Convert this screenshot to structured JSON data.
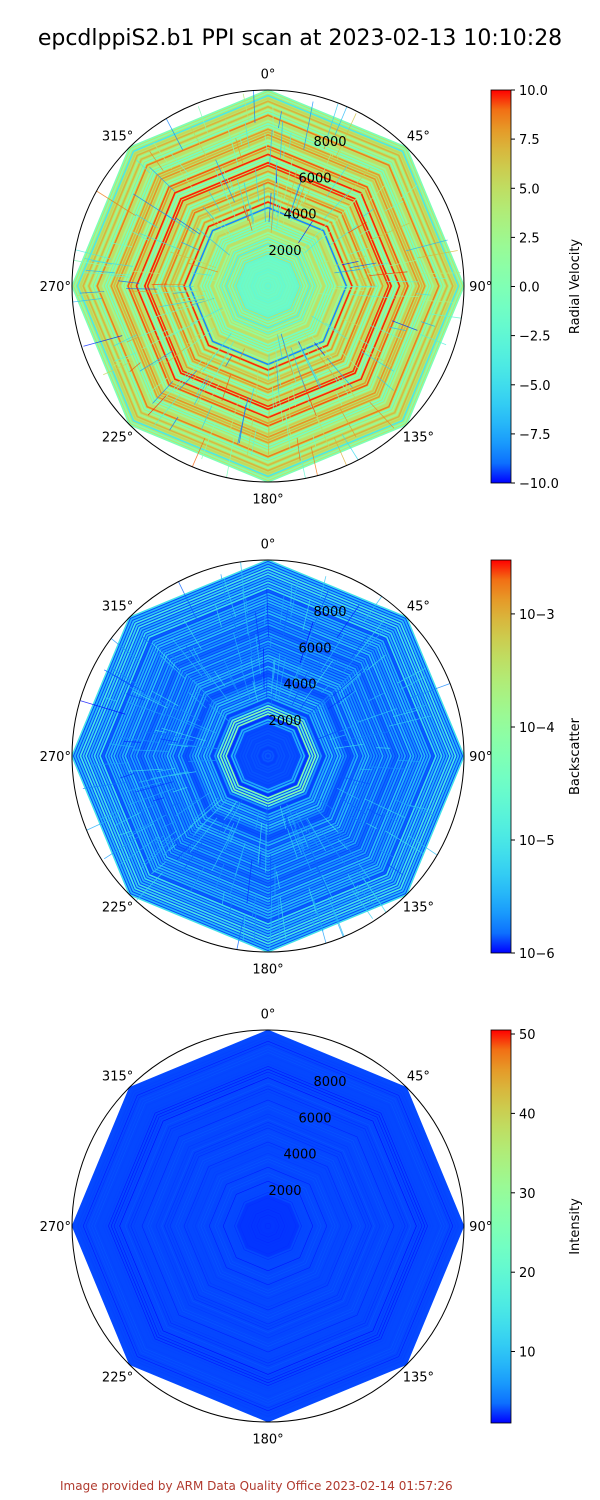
{
  "title": "epcdlppiS2.b1 PPI scan at 2023-02-13 10:10:28",
  "credit": "Image provided by ARM Data Quality Office 2023-02-14 01:57:26",
  "chart_data": [
    {
      "type": "heatmap",
      "projection": "polar",
      "theta_direction": "clockwise",
      "theta_zero": "north",
      "angle_ticks": [
        "0°",
        "45°",
        "90°",
        "135°",
        "180°",
        "225°",
        "270°",
        "315°"
      ],
      "range_ticks": [
        2000,
        4000,
        6000,
        8000
      ],
      "rmax": 10000,
      "scan_azimuths_deg": [
        0,
        45,
        90,
        135,
        180,
        225,
        270,
        315
      ],
      "colorbar": {
        "label": "Radial Velocity",
        "cmap": "rainbow",
        "scale": "linear",
        "range": [
          -10.0,
          10.0
        ],
        "ticks": [
          "10.0",
          "7.5",
          "5.0",
          "2.5",
          "0.0",
          "−2.5",
          "−5.0",
          "−7.5",
          "−10.0"
        ]
      },
      "field": "mixed, -10 to 10 (mostly orange/red and green bands)"
    },
    {
      "type": "heatmap",
      "projection": "polar",
      "theta_direction": "clockwise",
      "theta_zero": "north",
      "angle_ticks": [
        "0°",
        "45°",
        "90°",
        "135°",
        "180°",
        "225°",
        "270°",
        "315°"
      ],
      "range_ticks": [
        2000,
        4000,
        6000,
        8000
      ],
      "rmax": 10000,
      "scan_azimuths_deg": [
        0,
        45,
        90,
        135,
        180,
        225,
        270,
        315
      ],
      "colorbar": {
        "label": "Backscatter",
        "cmap": "rainbow",
        "scale": "log",
        "range": [
          1e-06,
          0.003
        ],
        "ticks": [
          "10−3",
          "10−4",
          "10−5",
          "10−6"
        ]
      },
      "field": "mostly 1e-6 to 1e-5 (violet/blue), cyan-green ring near 2000 m"
    },
    {
      "type": "heatmap",
      "projection": "polar",
      "theta_direction": "clockwise",
      "theta_zero": "north",
      "angle_ticks": [
        "0°",
        "45°",
        "90°",
        "135°",
        "180°",
        "225°",
        "270°",
        "315°"
      ],
      "range_ticks": [
        2000,
        4000,
        6000,
        8000
      ],
      "rmax": 10000,
      "scan_azimuths_deg": [
        0,
        45,
        90,
        135,
        180,
        225,
        270,
        315
      ],
      "colorbar": {
        "label": "Intensity",
        "cmap": "rainbow",
        "scale": "linear",
        "range": [
          1,
          50.5
        ],
        "ticks": [
          "50",
          "40",
          "30",
          "20",
          "10"
        ]
      },
      "field": "uniform near minimum (~1, violet)"
    }
  ]
}
